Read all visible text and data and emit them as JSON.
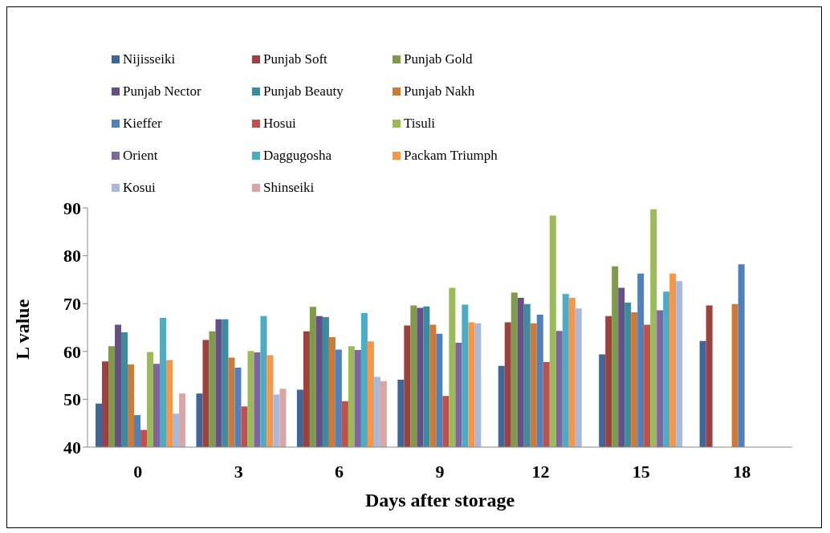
{
  "chart_data": {
    "type": "bar",
    "xlabel": "Days after storage",
    "ylabel": "L value",
    "categories": [
      "0",
      "3",
      "6",
      "9",
      "12",
      "15",
      "18"
    ],
    "ylim": [
      40,
      90
    ],
    "yticks": [
      40,
      50,
      60,
      70,
      80,
      90
    ],
    "grid": false,
    "legend": "top left",
    "series": [
      {
        "name": "Nijisseiki",
        "color": "#3e6699",
        "values": [
          49.1,
          51.2,
          52.0,
          54.1,
          57.0,
          59.4,
          62.2
        ]
      },
      {
        "name": "Punjab Soft",
        "color": "#9c4140",
        "values": [
          57.9,
          62.4,
          64.2,
          65.4,
          66.1,
          67.4,
          69.6
        ]
      },
      {
        "name": "Punjab Gold",
        "color": "#7f9a48",
        "values": [
          61.1,
          64.2,
          69.3,
          69.6,
          72.3,
          77.8,
          null
        ]
      },
      {
        "name": "Punjab Nector",
        "color": "#664f86",
        "values": [
          65.6,
          66.7,
          67.4,
          69.1,
          71.2,
          73.3,
          null
        ]
      },
      {
        "name": "Punjab Beauty",
        "color": "#3b8ca0",
        "values": [
          64.0,
          66.7,
          67.2,
          69.4,
          69.9,
          70.2,
          null
        ]
      },
      {
        "name": "Punjab Nakh",
        "color": "#cd7a37",
        "values": [
          57.3,
          58.7,
          63.0,
          65.6,
          65.9,
          68.2,
          69.9
        ]
      },
      {
        "name": "Kieffer",
        "color": "#4f81bd",
        "values": [
          46.7,
          56.6,
          60.4,
          63.7,
          67.7,
          76.3,
          78.2
        ]
      },
      {
        "name": "Hosui",
        "color": "#c0504d",
        "values": [
          43.6,
          48.5,
          49.6,
          50.7,
          57.8,
          65.6,
          null
        ]
      },
      {
        "name": "Tisuli",
        "color": "#9bbb59",
        "values": [
          59.9,
          60.1,
          61.1,
          73.3,
          88.4,
          89.7,
          null
        ]
      },
      {
        "name": "Orient",
        "color": "#8064a2",
        "values": [
          57.4,
          59.8,
          60.3,
          61.8,
          64.3,
          68.6,
          null
        ]
      },
      {
        "name": "Daggugosha",
        "color": "#4bacc6",
        "values": [
          67.0,
          67.4,
          68.0,
          69.8,
          72.0,
          72.5,
          null
        ]
      },
      {
        "name": "Packam Triumph",
        "color": "#f79646",
        "values": [
          58.2,
          59.2,
          62.1,
          66.1,
          71.2,
          76.3,
          null
        ]
      },
      {
        "name": "Kosui",
        "color": "#a9b9d9",
        "values": [
          47.0,
          51.0,
          54.7,
          65.9,
          69.0,
          74.7,
          null
        ]
      },
      {
        "name": "Shinseiki",
        "color": "#d9a6a5",
        "values": [
          51.2,
          52.2,
          53.8,
          null,
          null,
          null,
          null
        ]
      }
    ]
  }
}
